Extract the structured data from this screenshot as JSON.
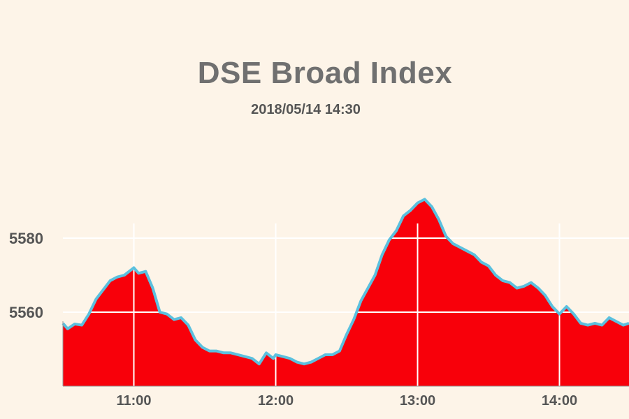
{
  "chart_data": {
    "type": "area",
    "title": "DSE Broad Index",
    "subtitle": "2018/05/14  14:30",
    "xlabel": "",
    "ylabel": "",
    "x_ticks": [
      "11:00",
      "12:00",
      "13:00",
      "14:00"
    ],
    "y_ticks": [
      5560,
      5580
    ],
    "xlim": [
      "10:30",
      "14:30"
    ],
    "ylim": [
      5540,
      5592
    ],
    "grid": true,
    "colors": {
      "fill": "#f8000a",
      "line": "#5bc0de",
      "grid": "#ffffff",
      "background": "#fdf4e8"
    },
    "series": [
      {
        "x": [
          "10:30",
          "10:32",
          "10:35",
          "10:38",
          "10:41",
          "10:44",
          "10:47",
          "10:50",
          "10:53",
          "10:56",
          "10:59",
          "11:00",
          "11:02",
          "11:05",
          "11:08",
          "11:11",
          "11:14",
          "11:17",
          "11:20",
          "11:23",
          "11:26",
          "11:29",
          "11:32",
          "11:35",
          "11:38",
          "11:41",
          "11:44",
          "11:47",
          "11:50",
          "11:53",
          "11:56",
          "11:59",
          "12:00",
          "12:03",
          "12:06",
          "12:09",
          "12:12",
          "12:15",
          "12:18",
          "12:21",
          "12:24",
          "12:27",
          "12:30",
          "12:33",
          "12:36",
          "12:39",
          "12:42",
          "12:45",
          "12:48",
          "12:51",
          "12:54",
          "12:57",
          "13:00",
          "13:03",
          "13:06",
          "13:09",
          "13:12",
          "13:15",
          "13:18",
          "13:21",
          "13:24",
          "13:27",
          "13:30",
          "13:33",
          "13:36",
          "13:39",
          "13:42",
          "13:45",
          "13:48",
          "13:51",
          "13:54",
          "13:57",
          "14:00",
          "14:03",
          "14:06",
          "14:09",
          "14:12",
          "14:15",
          "14:18",
          "14:21",
          "14:24",
          "14:27",
          "14:30"
        ],
        "y": [
          5557.0,
          5555.5,
          5556.8,
          5556.5,
          5559.5,
          5563.5,
          5566.0,
          5568.5,
          5569.5,
          5570.0,
          5571.5,
          5572.0,
          5570.5,
          5571.0,
          5566.5,
          5560.0,
          5559.5,
          5558.0,
          5558.5,
          5556.5,
          5552.5,
          5550.5,
          5549.5,
          5549.5,
          5549.0,
          5549.0,
          5548.5,
          5548.0,
          5547.5,
          5546.0,
          5549.0,
          5547.5,
          5548.5,
          5548.0,
          5547.5,
          5546.5,
          5546.0,
          5546.5,
          5547.5,
          5548.5,
          5548.5,
          5549.5,
          5554.0,
          5558.0,
          5563.0,
          5566.5,
          5570.0,
          5575.5,
          5579.5,
          5582.0,
          5586.0,
          5587.5,
          5589.5,
          5590.5,
          5588.5,
          5585.0,
          5580.5,
          5578.5,
          5577.5,
          5576.5,
          5575.5,
          5573.5,
          5572.5,
          5570.0,
          5568.5,
          5568.0,
          5566.5,
          5567.0,
          5568.0,
          5566.5,
          5564.5,
          5561.5,
          5559.5,
          5561.5,
          5559.5,
          5557.0,
          5556.5,
          5557.0,
          5556.5,
          5558.5,
          5557.5,
          5556.5,
          5557.0
        ]
      }
    ]
  }
}
